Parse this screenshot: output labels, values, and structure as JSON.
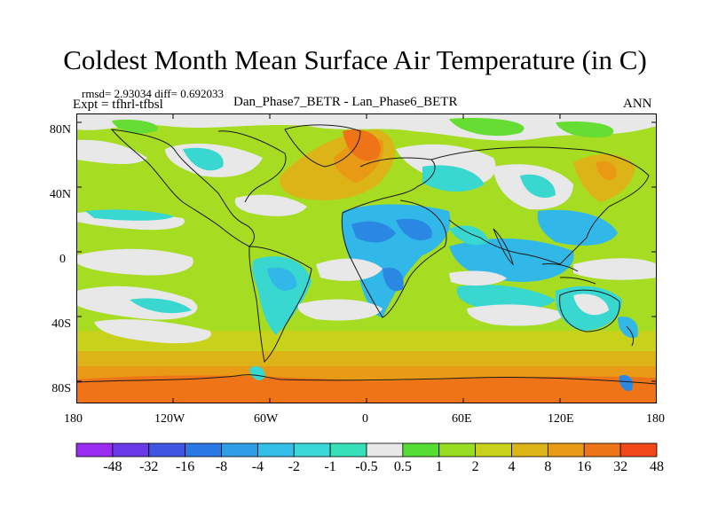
{
  "title": "Coldest Month Mean Surface Air Temperature (in C)",
  "stats": "rmsd= 2.93034 diff= 0.692033",
  "experiment": "Expt = tfhrl-tfbsl",
  "difference": "Dan_Phase7_BETR - Lan_Phase6_BETR",
  "season": "ANN",
  "latitude_labels": [
    "80N",
    "40N",
    "0",
    "40S",
    "80S"
  ],
  "longitude_labels": [
    "180",
    "120W",
    "60W",
    "0",
    "60E",
    "120E",
    "180"
  ],
  "colorbar": {
    "labels": [
      "-48",
      "-32",
      "-16",
      "-8",
      "-4",
      "-2",
      "-1",
      "-0.5",
      "0.5",
      "1",
      "2",
      "4",
      "8",
      "16",
      "32",
      "48"
    ],
    "colors": [
      "#9a2cf0",
      "#6b3ae8",
      "#3f56e0",
      "#2a78e6",
      "#2f9ee6",
      "#33c0e8",
      "#3ad8d8",
      "#36e0b8",
      "#e8e8e8",
      "#55dd33",
      "#99dd22",
      "#c8d21a",
      "#dcb418",
      "#e89a14",
      "#ee7418",
      "#f04818"
    ]
  },
  "map_colors": {
    "land_outline": "#1a1a1a",
    "white": "#e8e8e8",
    "cyan": "#38d8d0",
    "lightblue": "#31b8e8",
    "blue": "#2a88e4",
    "green": "#66dd33",
    "lime": "#a6dc22",
    "yellow": "#c9d21b",
    "gold": "#ddb418",
    "orange": "#e89a14",
    "deeporange": "#ef7418"
  }
}
